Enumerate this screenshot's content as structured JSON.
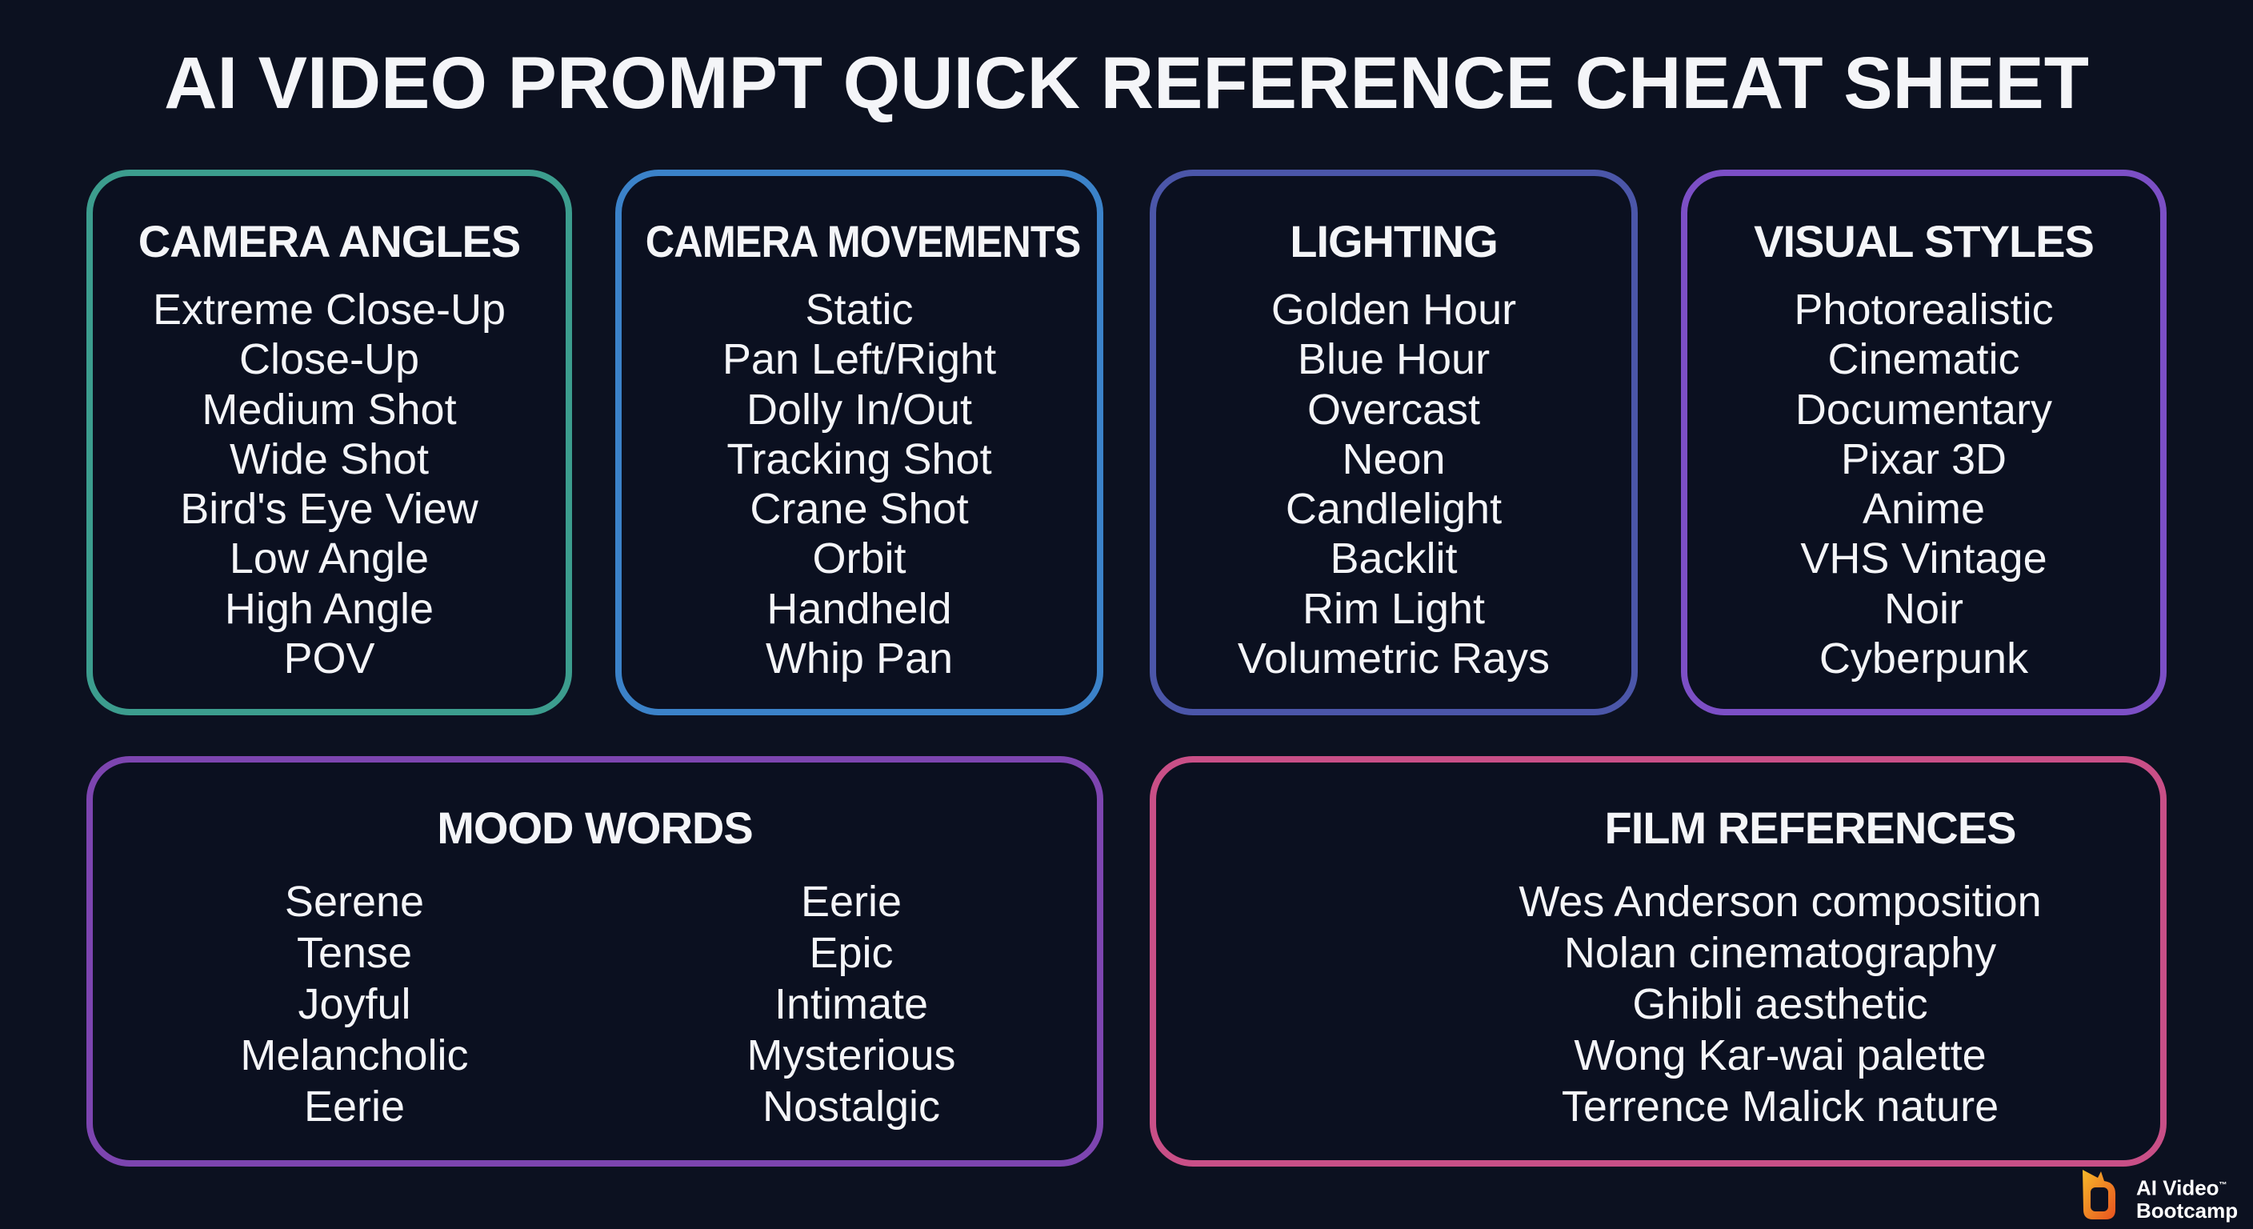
{
  "title": "AI VIDEO PROMPT QUICK REFERENCE CHEAT SHEET",
  "sections": [
    {
      "heading": "CAMERA ANGLES",
      "color": "#3c9d8e",
      "items": [
        "Extreme Close-Up",
        "Close-Up",
        "Medium Shot",
        "Wide Shot",
        "Bird's Eye View",
        "Low Angle",
        "High Angle",
        "POV"
      ]
    },
    {
      "heading": "CAMERA MOVEMENTS",
      "color": "#3b82c9",
      "items": [
        "Static",
        "Pan Left/Right",
        "Dolly In/Out",
        "Tracking Shot",
        "Crane Shot",
        "Orbit",
        "Handheld",
        "Whip Pan"
      ]
    },
    {
      "heading": "LIGHTING",
      "color": "#4b56a9",
      "items": [
        "Golden Hour",
        "Blue Hour",
        "Overcast",
        "Neon",
        "Candlelight",
        "Backlit",
        "Rim Light",
        "Volumetric Rays"
      ]
    },
    {
      "heading": "VISUAL STYLES",
      "color": "#7c4fc6",
      "items": [
        "Photorealistic",
        "Cinematic",
        "Documentary",
        "Pixar 3D",
        "Anime",
        "VHS Vintage",
        "Noir",
        "Cyberpunk"
      ]
    }
  ],
  "mood": {
    "heading": "MOOD WORDS",
    "color": "#7d45b0",
    "left": [
      "Serene",
      "Tense",
      "Joyful",
      "Melancholic",
      "Eerie"
    ],
    "right": [
      "Eerie",
      "Epic",
      "Intimate",
      "Mysterious",
      "Nostalgic"
    ]
  },
  "film": {
    "heading": "FILM REFERENCES",
    "color": "#c94f87",
    "items": [
      "Wes Anderson composition",
      "Nolan cinematography",
      "Ghibli aesthetic",
      "Wong Kar-wai palette",
      "Terrence Malick nature"
    ]
  },
  "logo": {
    "line1": "AI Video",
    "line2": "Bootcamp",
    "tm": "™"
  }
}
